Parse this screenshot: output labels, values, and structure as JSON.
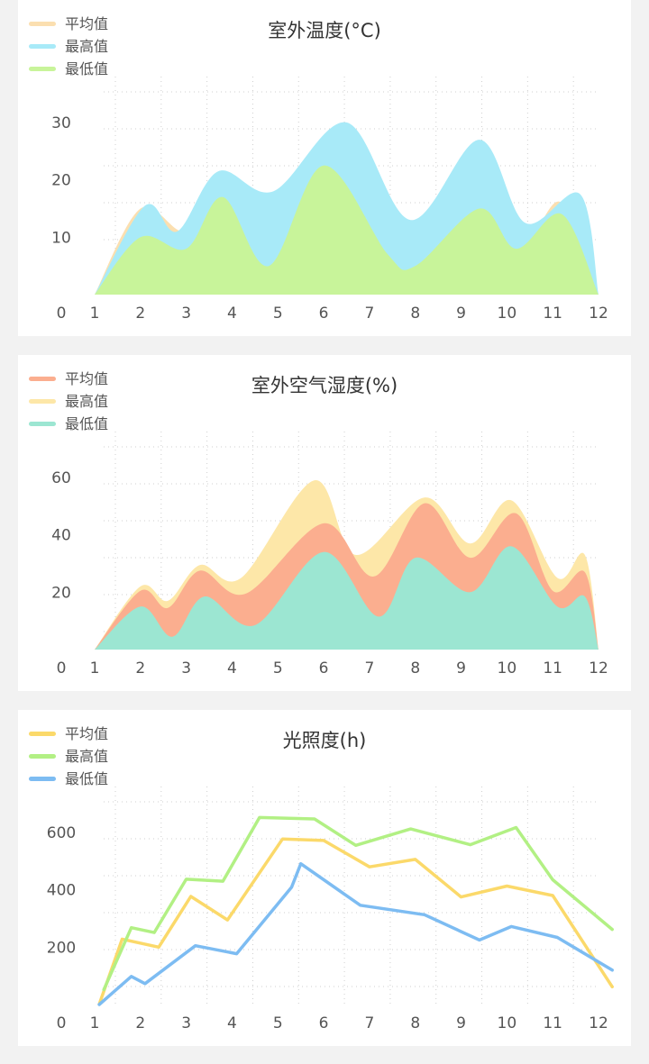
{
  "chart_data": [
    {
      "type": "area",
      "title": "室外温度(°C)",
      "x": [
        1,
        2,
        3,
        4,
        5,
        6,
        7,
        8,
        9,
        10,
        11,
        12
      ],
      "ylim": [
        0,
        38
      ],
      "yticks": [
        0,
        10,
        20,
        30
      ],
      "legend_position": "top-left",
      "series": [
        {
          "name": "平均值",
          "color": "#fbdfb0",
          "points": [
            [
              1,
              0
            ],
            [
              2,
              15
            ],
            [
              3,
              11
            ],
            [
              3.7,
              20.5
            ],
            [
              4.9,
              14.5
            ],
            [
              6.4,
              26.5
            ],
            [
              7.9,
              11
            ],
            [
              9.4,
              23.5
            ],
            [
              10.4,
              10.5
            ],
            [
              11.2,
              16
            ],
            [
              12,
              0
            ]
          ]
        },
        {
          "name": "最高值",
          "color": "#a8eaf8",
          "points": [
            [
              1,
              0
            ],
            [
              2.1,
              15.5
            ],
            [
              2.8,
              11
            ],
            [
              3.7,
              21.5
            ],
            [
              4.9,
              18
            ],
            [
              6.5,
              30
            ],
            [
              7.9,
              13
            ],
            [
              9.4,
              27
            ],
            [
              10.4,
              12.5
            ],
            [
              11.6,
              17.5
            ],
            [
              12,
              0
            ]
          ]
        },
        {
          "name": "最低值",
          "color": "#c8f49a",
          "points": [
            [
              1,
              0
            ],
            [
              2,
              10
            ],
            [
              3,
              8
            ],
            [
              3.8,
              17
            ],
            [
              4.8,
              5
            ],
            [
              6,
              22.5
            ],
            [
              7.4,
              7
            ],
            [
              8,
              5
            ],
            [
              9.4,
              15
            ],
            [
              10.2,
              8
            ],
            [
              11.2,
              14
            ],
            [
              12,
              0
            ]
          ]
        }
      ]
    },
    {
      "type": "area",
      "title": "室外空气湿度(%)",
      "x": [
        1,
        2,
        3,
        4,
        5,
        6,
        7,
        8,
        9,
        10,
        11,
        12
      ],
      "ylim": [
        0,
        76
      ],
      "yticks": [
        0,
        20,
        40,
        60
      ],
      "legend_position": "top-left",
      "series": [
        {
          "name": "最高值",
          "color": "#fde7a8",
          "points": [
            [
              1,
              0
            ],
            [
              2,
              22
            ],
            [
              2.6,
              17
            ],
            [
              3.3,
              29.5
            ],
            [
              4.2,
              25
            ],
            [
              5.8,
              59
            ],
            [
              6.7,
              33
            ],
            [
              8.2,
              53
            ],
            [
              9.2,
              37
            ],
            [
              10.1,
              52
            ],
            [
              11.1,
              25
            ],
            [
              11.7,
              33
            ],
            [
              12,
              0
            ]
          ]
        },
        {
          "name": "平均值",
          "color": "#fbae8f",
          "points": [
            [
              1,
              0
            ],
            [
              2,
              20.5
            ],
            [
              2.6,
              14.5
            ],
            [
              3.3,
              27.5
            ],
            [
              4.3,
              19.5
            ],
            [
              6,
              44
            ],
            [
              7.1,
              25.5
            ],
            [
              8.2,
              51
            ],
            [
              9.2,
              32
            ],
            [
              10.2,
              47.5
            ],
            [
              11,
              20.5
            ],
            [
              11.7,
              27
            ],
            [
              12,
              0
            ]
          ]
        },
        {
          "name": "最低值",
          "color": "#9ce6d2",
          "points": [
            [
              1,
              0
            ],
            [
              2,
              15
            ],
            [
              2.7,
              4.5
            ],
            [
              3.4,
              18.5
            ],
            [
              4.5,
              8.5
            ],
            [
              6,
              34
            ],
            [
              7.2,
              11.5
            ],
            [
              8,
              32
            ],
            [
              9.2,
              20
            ],
            [
              10.1,
              36
            ],
            [
              11.1,
              15
            ],
            [
              11.7,
              18.5
            ],
            [
              12,
              0
            ]
          ]
        }
      ]
    },
    {
      "type": "line",
      "title": "光照度(h)",
      "x": [
        1,
        2,
        3,
        4,
        5,
        6,
        7,
        8,
        9,
        10,
        11,
        12
      ],
      "ylim": [
        0,
        760
      ],
      "yticks": [
        0,
        200,
        400,
        600
      ],
      "legend_position": "top-left",
      "series": [
        {
          "name": "平均值",
          "color": "#fbd96a",
          "points": [
            [
              1.1,
              1
            ],
            [
              1.6,
              228
            ],
            [
              2.4,
              200
            ],
            [
              3.1,
              377
            ],
            [
              3.9,
              295
            ],
            [
              5.1,
              577
            ],
            [
              6,
              572
            ],
            [
              7,
              480
            ],
            [
              8,
              506
            ],
            [
              9,
              375
            ],
            [
              10,
              413
            ],
            [
              11,
              380
            ],
            [
              12.3,
              62
            ]
          ]
        },
        {
          "name": "最高值",
          "color": "#b2f084",
          "points": [
            [
              1.2,
              52
            ],
            [
              1.8,
              268
            ],
            [
              2.3,
              251
            ],
            [
              3,
              437
            ],
            [
              3.8,
              430
            ],
            [
              4.6,
              652
            ],
            [
              5.8,
              647
            ],
            [
              6.7,
              555
            ],
            [
              7.9,
              612
            ],
            [
              9.2,
              557
            ],
            [
              10.2,
              617
            ],
            [
              11,
              435
            ],
            [
              12.3,
              262
            ]
          ]
        },
        {
          "name": "最低值",
          "color": "#7dbcf2",
          "points": [
            [
              1.1,
              0
            ],
            [
              1.8,
              98
            ],
            [
              2.1,
              73
            ],
            [
              3.2,
              205
            ],
            [
              4.1,
              177
            ],
            [
              5.3,
              409
            ],
            [
              5.5,
              491
            ],
            [
              6.8,
              346
            ],
            [
              8.2,
              313
            ],
            [
              9.4,
              225
            ],
            [
              10.1,
              272
            ],
            [
              11.1,
              234
            ],
            [
              12.3,
              120
            ]
          ]
        }
      ]
    }
  ]
}
